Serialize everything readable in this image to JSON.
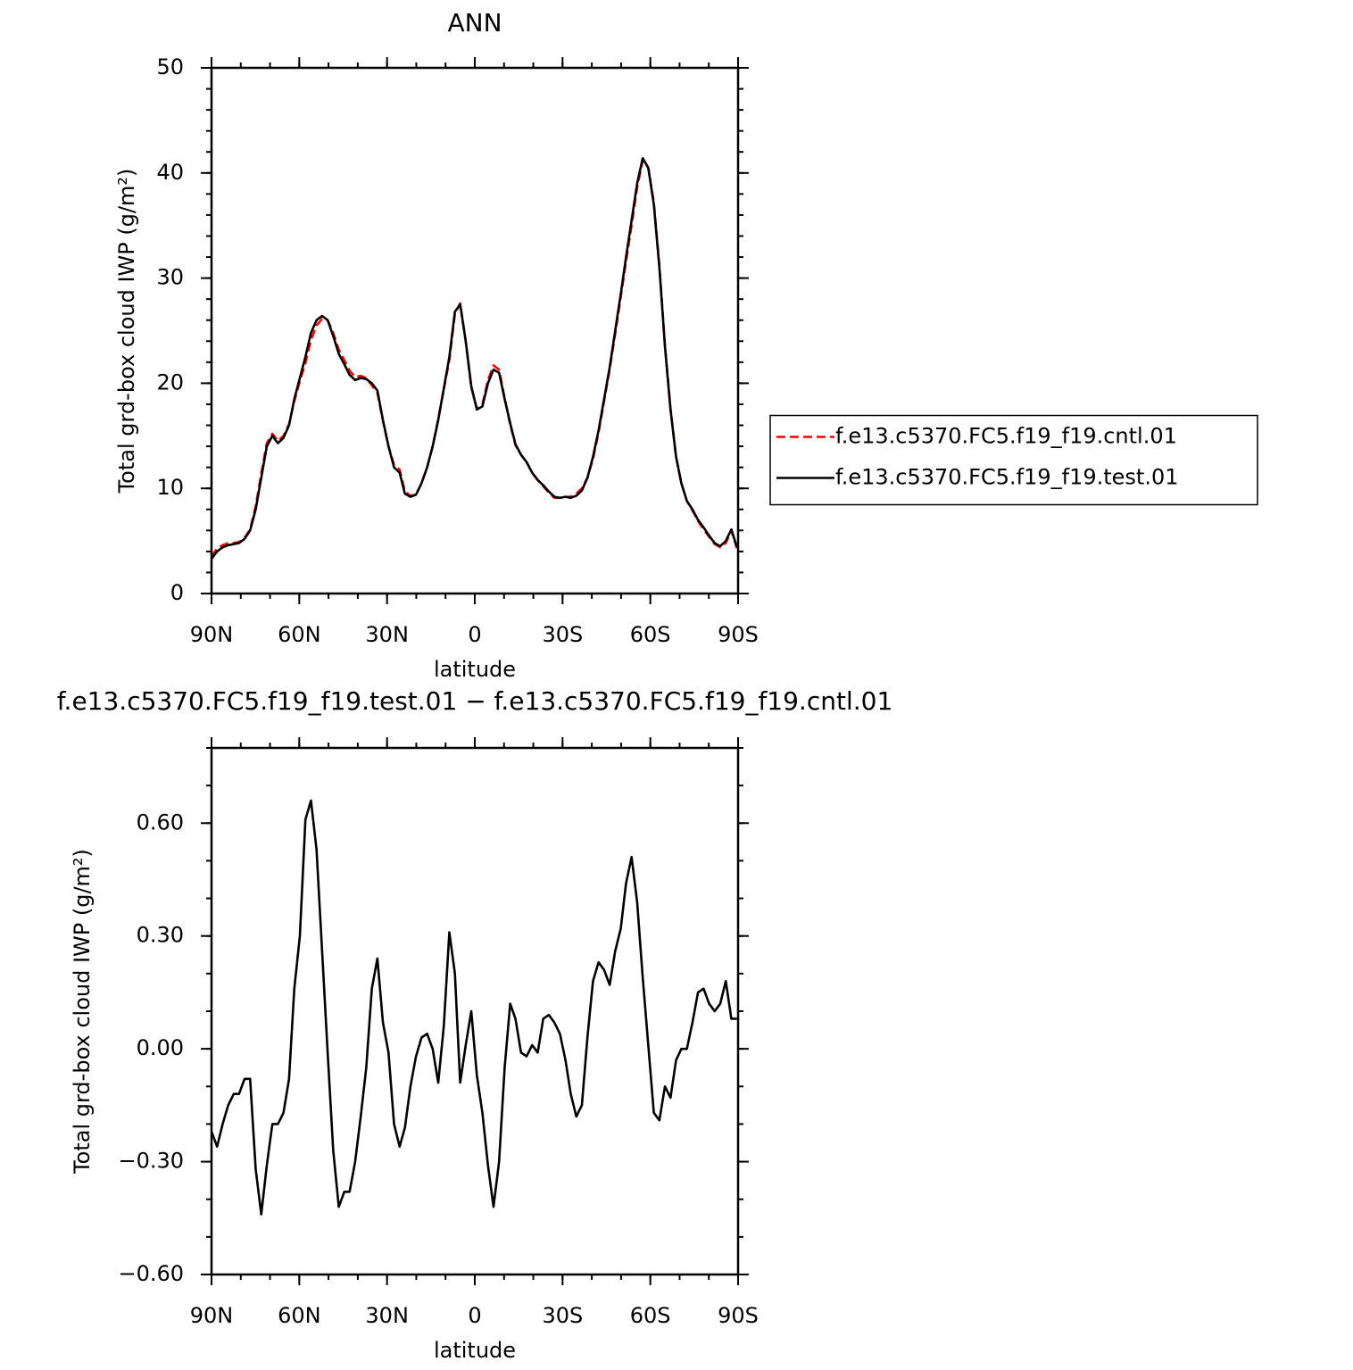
{
  "chart_data": [
    {
      "type": "line",
      "title": "ANN",
      "xlabel": "latitude",
      "ylabel": "Total grd-box cloud IWP (g/m²)",
      "x": [
        90.0,
        88.1,
        86.2,
        84.3,
        82.4,
        80.6,
        78.7,
        76.8,
        74.9,
        73.0,
        71.1,
        69.2,
        67.3,
        65.4,
        63.5,
        61.7,
        59.8,
        57.9,
        56.0,
        54.1,
        52.2,
        50.3,
        48.4,
        46.5,
        44.6,
        42.8,
        40.9,
        39.0,
        37.1,
        35.2,
        33.3,
        31.4,
        29.5,
        27.6,
        25.7,
        23.9,
        22.0,
        20.1,
        18.2,
        16.3,
        14.4,
        12.5,
        10.6,
        8.7,
        6.8,
        5.0,
        3.1,
        1.2,
        -0.7,
        -2.6,
        -4.5,
        -6.4,
        -8.3,
        -10.2,
        -12.1,
        -13.9,
        -15.8,
        -17.7,
        -19.6,
        -21.5,
        -23.4,
        -25.3,
        -27.2,
        -29.1,
        -31.0,
        -32.8,
        -34.7,
        -36.6,
        -38.5,
        -40.4,
        -42.3,
        -44.2,
        -46.1,
        -48.0,
        -49.9,
        -51.7,
        -53.6,
        -55.5,
        -57.4,
        -59.3,
        -61.2,
        -63.1,
        -65.0,
        -66.9,
        -68.8,
        -70.6,
        -72.5,
        -74.4,
        -76.3,
        -78.2,
        -80.1,
        -82.0,
        -83.9,
        -85.8,
        -87.7,
        -89.6
      ],
      "series": [
        {
          "name": "f.e13.c5370.FC5.f19_f19.cntl.01",
          "color": "#ff0000",
          "dash": true,
          "values": [
            3.5,
            4.3,
            4.6,
            4.8,
            4.8,
            4.9,
            5.3,
            6.1,
            8.3,
            11.4,
            14.3,
            15.2,
            14.5,
            15.0,
            16.1,
            18.3,
            20.2,
            21.9,
            24.1,
            25.5,
            26.1,
            26.0,
            24.8,
            23.2,
            22.2,
            21.2,
            20.6,
            20.7,
            20.5,
            19.8,
            19.1,
            16.4,
            14.0,
            12.2,
            11.8,
            9.7,
            9.3,
            9.4,
            10.5,
            12.0,
            14.0,
            16.6,
            19.4,
            22.2,
            26.6,
            27.6,
            24.0,
            19.6,
            17.6,
            18.0,
            20.3,
            21.7,
            21.3,
            18.6,
            16.1,
            14.1,
            13.2,
            12.5,
            11.5,
            10.8,
            10.2,
            9.6,
            9.1,
            9.1,
            9.2,
            9.2,
            9.5,
            10.0,
            11.0,
            12.8,
            15.3,
            18.3,
            21.3,
            24.7,
            28.2,
            31.6,
            35.0,
            38.6,
            41.2,
            40.5,
            37.2,
            31.2,
            23.6,
            17.6,
            13.0,
            10.5,
            8.8,
            7.9,
            6.9,
            6.1,
            5.4,
            4.7,
            4.4,
            4.8,
            6.0,
            4.3
          ]
        },
        {
          "name": "f.e13.c5370.FC5.f19_f19.test.01",
          "color": "#000000",
          "dash": false,
          "values": [
            3.3,
            4.0,
            4.4,
            4.6,
            4.7,
            4.8,
            5.2,
            6.0,
            8.0,
            11.0,
            14.0,
            15.0,
            14.3,
            14.8,
            16.0,
            18.5,
            20.5,
            22.5,
            24.8,
            26.0,
            26.4,
            26.0,
            24.5,
            22.8,
            21.8,
            20.8,
            20.3,
            20.5,
            20.4,
            20.0,
            19.3,
            16.5,
            14.0,
            12.0,
            11.5,
            9.5,
            9.2,
            9.4,
            10.5,
            12.0,
            14.0,
            16.5,
            19.5,
            22.5,
            26.8,
            27.5,
            24.0,
            19.7,
            17.5,
            17.8,
            20.0,
            21.3,
            21.0,
            18.5,
            16.2,
            14.2,
            13.2,
            12.5,
            11.5,
            10.8,
            10.3,
            9.7,
            9.2,
            9.1,
            9.2,
            9.1,
            9.3,
            9.8,
            11.0,
            13.0,
            15.5,
            18.5,
            21.5,
            25.0,
            28.5,
            32.0,
            35.5,
            39.0,
            41.4,
            40.5,
            37.0,
            31.0,
            23.5,
            17.5,
            13.0,
            10.5,
            8.8,
            8.0,
            7.0,
            6.3,
            5.5,
            4.8,
            4.5,
            5.0,
            6.1,
            4.4
          ]
        }
      ],
      "xlim": [
        90,
        -90
      ],
      "xticks": [
        {
          "value": 90,
          "label": "90N"
        },
        {
          "value": 60,
          "label": "60N"
        },
        {
          "value": 30,
          "label": "30N"
        },
        0,
        {
          "value": -30,
          "label": "30S"
        },
        {
          "value": -60,
          "label": "60S"
        },
        {
          "value": -90,
          "label": "90S"
        }
      ],
      "ylim": [
        0,
        50
      ],
      "yticks": [
        0,
        10,
        20,
        30,
        40,
        50
      ],
      "legend": "right"
    },
    {
      "type": "line",
      "title": "f.e13.c5370.FC5.f19_f19.test.01 − f.e13.c5370.FC5.f19_f19.cntl.01",
      "xlabel": "latitude",
      "ylabel": "Total grd-box cloud IWP (g/m²)",
      "x": [
        90.0,
        88.1,
        86.2,
        84.3,
        82.4,
        80.6,
        78.7,
        76.8,
        74.9,
        73.0,
        71.1,
        69.2,
        67.3,
        65.4,
        63.5,
        61.7,
        59.8,
        57.9,
        56.0,
        54.1,
        52.2,
        50.3,
        48.4,
        46.5,
        44.6,
        42.8,
        40.9,
        39.0,
        37.1,
        35.2,
        33.3,
        31.4,
        29.5,
        27.6,
        25.7,
        23.9,
        22.0,
        20.1,
        18.2,
        16.3,
        14.4,
        12.5,
        10.6,
        8.7,
        6.8,
        5.0,
        3.1,
        1.2,
        -0.7,
        -2.6,
        -4.5,
        -6.4,
        -8.3,
        -10.2,
        -12.1,
        -13.9,
        -15.8,
        -17.7,
        -19.6,
        -21.5,
        -23.4,
        -25.3,
        -27.2,
        -29.1,
        -31.0,
        -32.8,
        -34.7,
        -36.6,
        -38.5,
        -40.4,
        -42.3,
        -44.2,
        -46.1,
        -48.0,
        -49.9,
        -51.7,
        -53.6,
        -55.5,
        -57.4,
        -59.3,
        -61.2,
        -63.1,
        -65.0,
        -66.9,
        -68.8,
        -70.6,
        -72.5,
        -74.4,
        -76.3,
        -78.2,
        -80.1,
        -82.0,
        -83.9,
        -85.8,
        -87.7,
        -89.6
      ],
      "series": [
        {
          "color": "#000000",
          "dash": false,
          "values": [
            -0.22,
            -0.26,
            -0.2,
            -0.15,
            -0.12,
            -0.12,
            -0.08,
            -0.08,
            -0.32,
            -0.44,
            -0.31,
            -0.2,
            -0.2,
            -0.17,
            -0.08,
            0.16,
            0.3,
            0.61,
            0.66,
            0.53,
            0.26,
            -0.01,
            -0.27,
            -0.42,
            -0.38,
            -0.38,
            -0.3,
            -0.18,
            -0.05,
            0.16,
            0.24,
            0.07,
            -0.01,
            -0.2,
            -0.26,
            -0.21,
            -0.1,
            -0.02,
            0.03,
            0.04,
            0.0,
            -0.09,
            0.06,
            0.31,
            0.2,
            -0.09,
            0.01,
            0.1,
            -0.07,
            -0.17,
            -0.31,
            -0.42,
            -0.3,
            -0.05,
            0.12,
            0.08,
            -0.01,
            -0.02,
            0.01,
            -0.01,
            0.08,
            0.09,
            0.07,
            0.04,
            -0.03,
            -0.12,
            -0.18,
            -0.15,
            0.03,
            0.18,
            0.23,
            0.21,
            0.17,
            0.26,
            0.32,
            0.44,
            0.51,
            0.39,
            0.19,
            0.01,
            -0.17,
            -0.19,
            -0.1,
            -0.13,
            -0.03,
            0.0,
            0.0,
            0.07,
            0.15,
            0.16,
            0.12,
            0.1,
            0.12,
            0.18,
            0.08,
            0.08
          ]
        }
      ],
      "xlim": [
        90,
        -90
      ],
      "xticks": [
        {
          "value": 90,
          "label": "90N"
        },
        {
          "value": 60,
          "label": "60N"
        },
        {
          "value": 30,
          "label": "30N"
        },
        0,
        {
          "value": -30,
          "label": "30S"
        },
        {
          "value": -60,
          "label": "60S"
        },
        {
          "value": -90,
          "label": "90S"
        }
      ],
      "ylim": [
        -0.6,
        0.8
      ],
      "yticks": [
        {
          "value": -0.6,
          "label": "−0.60"
        },
        {
          "value": -0.3,
          "label": "−0.30"
        },
        {
          "value": 0,
          "label": "0.00"
        },
        {
          "value": 0.3,
          "label": "0.30"
        },
        {
          "value": 0.6,
          "label": "0.60"
        }
      ]
    }
  ]
}
